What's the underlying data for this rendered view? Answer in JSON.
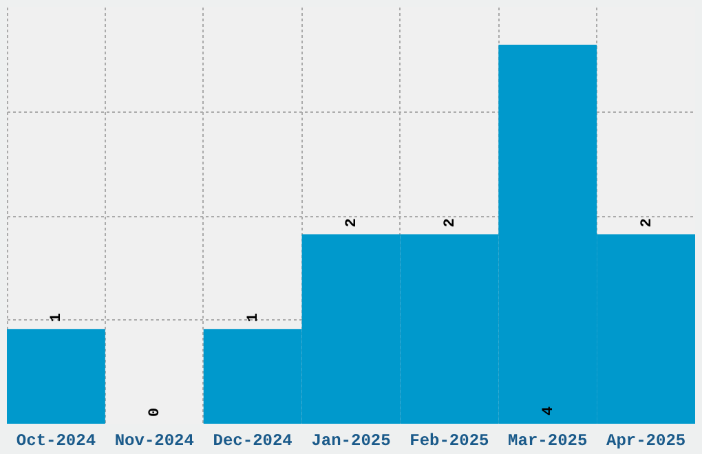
{
  "chart_data": {
    "type": "bar",
    "categories": [
      "Oct-2024",
      "Nov-2024",
      "Dec-2024",
      "Jan-2025",
      "Feb-2025",
      "Mar-2025",
      "Apr-2025"
    ],
    "values": [
      1,
      0,
      1,
      2,
      2,
      4,
      2
    ],
    "color": "#0099cc",
    "ylim": [
      0,
      4.4
    ],
    "yticks": [
      {
        "value": 1.1,
        "label": null
      },
      {
        "value": 2.2,
        "label": null
      },
      {
        "value": 3.3,
        "label": null
      }
    ],
    "grid": true,
    "tick_labels": "x",
    "data_labels": true
  }
}
